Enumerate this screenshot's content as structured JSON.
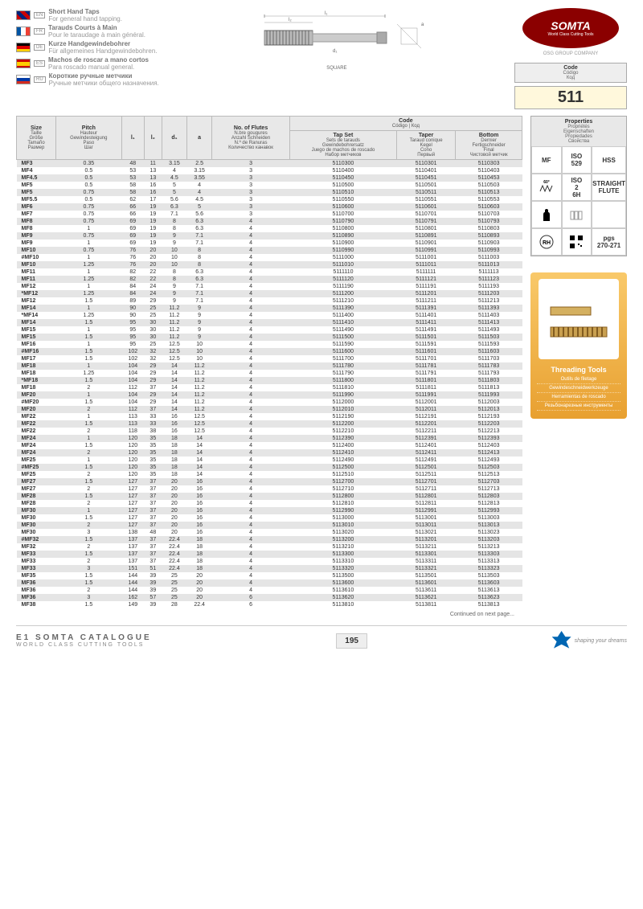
{
  "langs": [
    {
      "code": "EN",
      "title": "Short Hand Taps",
      "sub": "For general hand tapping."
    },
    {
      "code": "FR",
      "title": "Tarauds Courts à Main",
      "sub": "Pour le taraudage à main général."
    },
    {
      "code": "DE",
      "title": "Kurze Handgewindebohrer",
      "sub": "Für allgemeines Handgewindebohren."
    },
    {
      "code": "ES",
      "title": "Machos de roscar a mano cortos",
      "sub": "Para roscado manual general."
    },
    {
      "code": "RU",
      "title": "Короткие ручные метчики",
      "sub": "Ручные метчики общего назначения."
    }
  ],
  "brand": {
    "name": "SOMTA",
    "tag": "World Class Cutting Tools",
    "osg": "OSG GROUP COMPANY"
  },
  "diagramLabel": "SQUARE",
  "codeBox": {
    "title": "Code",
    "subs": [
      "Código",
      "Код"
    ],
    "value": "511"
  },
  "headers": {
    "size": {
      "t": "Size",
      "s": [
        "Taille",
        "Größe",
        "Tamaño",
        "Размер"
      ]
    },
    "pitch": {
      "t": "Pitch",
      "s": [
        "Hauteur",
        "Gewindesteigung",
        "Paso",
        "Шаг"
      ]
    },
    "l1": "l₁",
    "l2": "l₂",
    "d1": "d₁",
    "a": "a",
    "flutes": {
      "t": "No. of Flutes",
      "s": [
        "N.bre gougures",
        "Anzahl Schneiden",
        "N.º de Ranuras",
        "Количество канавок"
      ]
    },
    "code": {
      "t": "Code",
      "s": "Código | Код"
    },
    "tapset": {
      "t": "Tap Set",
      "s": [
        "Sets de tarauds",
        "Gewindebohrersatz",
        "Juego de machos de roscado",
        "Набор метчиков"
      ]
    },
    "taper": {
      "t": "Taper",
      "s": [
        "Taraud conique",
        "Kegel",
        "Cono",
        "Первый"
      ]
    },
    "bottom": {
      "t": "Bottom",
      "s": [
        "Dernier",
        "Fertigschneider",
        "Final",
        "Чистовой метчик"
      ]
    }
  },
  "rows": [
    [
      "MF3",
      "0.35",
      "48",
      "11",
      "3.15",
      "2.5",
      "3",
      "5110300",
      "5110301",
      "5110303"
    ],
    [
      "MF4",
      "0.5",
      "53",
      "13",
      "4",
      "3.15",
      "3",
      "5110400",
      "5110401",
      "5110403"
    ],
    [
      "MF4.5",
      "0.5",
      "53",
      "13",
      "4.5",
      "3.55",
      "3",
      "5110450",
      "5110451",
      "5110453"
    ],
    [
      "MF5",
      "0.5",
      "58",
      "16",
      "5",
      "4",
      "3",
      "5110500",
      "5110501",
      "5110503"
    ],
    [
      "MF5",
      "0.75",
      "58",
      "16",
      "5",
      "4",
      "3",
      "5110510",
      "5110511",
      "5110513"
    ],
    [
      "MF5.5",
      "0.5",
      "62",
      "17",
      "5.6",
      "4.5",
      "3",
      "5110550",
      "5110551",
      "5110553"
    ],
    [
      "MF6",
      "0.75",
      "66",
      "19",
      "6.3",
      "5",
      "3",
      "5110600",
      "5110601",
      "5110603"
    ],
    [
      "MF7",
      "0.75",
      "66",
      "19",
      "7.1",
      "5.6",
      "3",
      "5110700",
      "5110701",
      "5110703"
    ],
    [
      "MF8",
      "0.75",
      "69",
      "19",
      "8",
      "6.3",
      "4",
      "5110790",
      "5110791",
      "5110793"
    ],
    [
      "MF8",
      "1",
      "69",
      "19",
      "8",
      "6.3",
      "4",
      "5110800",
      "5110801",
      "5110803"
    ],
    [
      "MF9",
      "0.75",
      "69",
      "19",
      "9",
      "7.1",
      "4",
      "5110890",
      "5110891",
      "5110893"
    ],
    [
      "MF9",
      "1",
      "69",
      "19",
      "9",
      "7.1",
      "4",
      "5110900",
      "5110901",
      "5110903"
    ],
    [
      "MF10",
      "0.75",
      "76",
      "20",
      "10",
      "8",
      "4",
      "5110990",
      "5110991",
      "5110993"
    ],
    [
      "#MF10",
      "1",
      "76",
      "20",
      "10",
      "8",
      "4",
      "5111000",
      "5111001",
      "5111003"
    ],
    [
      "MF10",
      "1.25",
      "76",
      "20",
      "10",
      "8",
      "4",
      "5111010",
      "5111011",
      "5111013"
    ],
    [
      "MF11",
      "1",
      "82",
      "22",
      "8",
      "6.3",
      "4",
      "5111110",
      "5111111",
      "5111113"
    ],
    [
      "MF11",
      "1.25",
      "82",
      "22",
      "8",
      "6.3",
      "4",
      "5111120",
      "5111121",
      "5111123"
    ],
    [
      "MF12",
      "1",
      "84",
      "24",
      "9",
      "7.1",
      "4",
      "5111190",
      "5111191",
      "5111193"
    ],
    [
      "*MF12",
      "1.25",
      "84",
      "24",
      "9",
      "7.1",
      "4",
      "5111200",
      "5111201",
      "5111203"
    ],
    [
      "MF12",
      "1.5",
      "89",
      "29",
      "9",
      "7.1",
      "4",
      "5111210",
      "5111211",
      "5111213"
    ],
    [
      "MF14",
      "1",
      "90",
      "25",
      "11.2",
      "9",
      "4",
      "5111390",
      "5111391",
      "5111393"
    ],
    [
      "*MF14",
      "1.25",
      "90",
      "25",
      "11.2",
      "9",
      "4",
      "5111400",
      "5111401",
      "5111403"
    ],
    [
      "MF14",
      "1.5",
      "95",
      "30",
      "11.2",
      "9",
      "4",
      "5111410",
      "5111411",
      "5111413"
    ],
    [
      "MF15",
      "1",
      "95",
      "30",
      "11.2",
      "9",
      "4",
      "5111490",
      "5111491",
      "5111493"
    ],
    [
      "MF15",
      "1.5",
      "95",
      "30",
      "11.2",
      "9",
      "4",
      "5111500",
      "5111501",
      "5111503"
    ],
    [
      "MF16",
      "1",
      "95",
      "25",
      "12.5",
      "10",
      "4",
      "5111590",
      "5111591",
      "5111593"
    ],
    [
      "#MF16",
      "1.5",
      "102",
      "32",
      "12.5",
      "10",
      "4",
      "5111600",
      "5111601",
      "5111603"
    ],
    [
      "MF17",
      "1.5",
      "102",
      "32",
      "12.5",
      "10",
      "4",
      "5111700",
      "5111701",
      "5111703"
    ],
    [
      "MF18",
      "1",
      "104",
      "29",
      "14",
      "11.2",
      "4",
      "5111780",
      "5111781",
      "5111783"
    ],
    [
      "MF18",
      "1.25",
      "104",
      "29",
      "14",
      "11.2",
      "4",
      "5111790",
      "5111791",
      "5111793"
    ],
    [
      "*MF18",
      "1.5",
      "104",
      "29",
      "14",
      "11.2",
      "4",
      "5111800",
      "5111801",
      "5111803"
    ],
    [
      "MF18",
      "2",
      "112",
      "37",
      "14",
      "11.2",
      "4",
      "5111810",
      "5111811",
      "5111813"
    ],
    [
      "MF20",
      "1",
      "104",
      "29",
      "14",
      "11.2",
      "4",
      "5111990",
      "5111991",
      "5111993"
    ],
    [
      "#MF20",
      "1.5",
      "104",
      "29",
      "14",
      "11.2",
      "4",
      "5112000",
      "5112001",
      "5112003"
    ],
    [
      "MF20",
      "2",
      "112",
      "37",
      "14",
      "11.2",
      "4",
      "5112010",
      "5112011",
      "5112013"
    ],
    [
      "MF22",
      "1",
      "113",
      "33",
      "16",
      "12.5",
      "4",
      "5112190",
      "5112191",
      "5112193"
    ],
    [
      "MF22",
      "1.5",
      "113",
      "33",
      "16",
      "12.5",
      "4",
      "5112200",
      "5112201",
      "5112203"
    ],
    [
      "MF22",
      "2",
      "118",
      "38",
      "16",
      "12.5",
      "4",
      "5112210",
      "5112211",
      "5112213"
    ],
    [
      "MF24",
      "1",
      "120",
      "35",
      "18",
      "14",
      "4",
      "5112390",
      "5112391",
      "5112393"
    ],
    [
      "MF24",
      "1.5",
      "120",
      "35",
      "18",
      "14",
      "4",
      "5112400",
      "5112401",
      "5112403"
    ],
    [
      "MF24",
      "2",
      "120",
      "35",
      "18",
      "14",
      "4",
      "5112410",
      "5112411",
      "5112413"
    ],
    [
      "MF25",
      "1",
      "120",
      "35",
      "18",
      "14",
      "4",
      "5112490",
      "5112491",
      "5112493"
    ],
    [
      "#MF25",
      "1.5",
      "120",
      "35",
      "18",
      "14",
      "4",
      "5112500",
      "5112501",
      "5112503"
    ],
    [
      "MF25",
      "2",
      "120",
      "35",
      "18",
      "14",
      "4",
      "5112510",
      "5112511",
      "5112513"
    ],
    [
      "MF27",
      "1.5",
      "127",
      "37",
      "20",
      "16",
      "4",
      "5112700",
      "5112701",
      "5112703"
    ],
    [
      "MF27",
      "2",
      "127",
      "37",
      "20",
      "16",
      "4",
      "5112710",
      "5112711",
      "5112713"
    ],
    [
      "MF28",
      "1.5",
      "127",
      "37",
      "20",
      "16",
      "4",
      "5112800",
      "5112801",
      "5112803"
    ],
    [
      "MF28",
      "2",
      "127",
      "37",
      "20",
      "16",
      "4",
      "5112810",
      "5112811",
      "5112813"
    ],
    [
      "MF30",
      "1",
      "127",
      "37",
      "20",
      "16",
      "4",
      "5112990",
      "5112991",
      "5112993"
    ],
    [
      "MF30",
      "1.5",
      "127",
      "37",
      "20",
      "16",
      "4",
      "5113000",
      "5113001",
      "5113003"
    ],
    [
      "MF30",
      "2",
      "127",
      "37",
      "20",
      "16",
      "4",
      "5113010",
      "5113011",
      "5113013"
    ],
    [
      "MF30",
      "3",
      "138",
      "48",
      "20",
      "16",
      "4",
      "5113020",
      "5113021",
      "5113023"
    ],
    [
      "#MF32",
      "1.5",
      "137",
      "37",
      "22.4",
      "18",
      "4",
      "5113200",
      "5113201",
      "5113203"
    ],
    [
      "MF32",
      "2",
      "137",
      "37",
      "22.4",
      "18",
      "4",
      "5113210",
      "5113211",
      "5113213"
    ],
    [
      "MF33",
      "1.5",
      "137",
      "37",
      "22.4",
      "18",
      "4",
      "5113300",
      "5113301",
      "5113303"
    ],
    [
      "MF33",
      "2",
      "137",
      "37",
      "22.4",
      "18",
      "4",
      "5113310",
      "5113311",
      "5113313"
    ],
    [
      "MF33",
      "3",
      "151",
      "51",
      "22.4",
      "18",
      "4",
      "5113320",
      "5113321",
      "5113323"
    ],
    [
      "MF35",
      "1.5",
      "144",
      "39",
      "25",
      "20",
      "4",
      "5113500",
      "5113501",
      "5113503"
    ],
    [
      "MF36",
      "1.5",
      "144",
      "39",
      "25",
      "20",
      "4",
      "5113600",
      "5113601",
      "5113603"
    ],
    [
      "MF36",
      "2",
      "144",
      "39",
      "25",
      "20",
      "4",
      "5113610",
      "5113611",
      "5113613"
    ],
    [
      "MF36",
      "3",
      "162",
      "57",
      "25",
      "20",
      "6",
      "5113620",
      "5113621",
      "5113623"
    ],
    [
      "MF38",
      "1.5",
      "149",
      "39",
      "28",
      "22.4",
      "6",
      "5113810",
      "5113811",
      "5113813"
    ]
  ],
  "continued": "Continued on next page...",
  "props": {
    "title": "Properties",
    "subs": [
      "Propriétés",
      "Eigenschaften",
      "Propiedades",
      "Свойства"
    ],
    "cells": [
      "MF",
      "ISO 529",
      "HSS",
      "60°",
      "ISO 2 6H",
      "STRAIGHT FLUTE",
      "hand",
      "flute-icon",
      "",
      "RH",
      "qr",
      "pgs 270-271"
    ]
  },
  "promo": {
    "title": "Threading Tools",
    "subs": [
      "Outils de filetage",
      "Gewindeschneidwerkzeuge",
      "Herramientas de roscado",
      "Резьбонарезные инструменты"
    ]
  },
  "footer": {
    "cat": "E1 SOMTA CATALOGUE",
    "sub": "WORLD CLASS CUTTING TOOLS",
    "page": "195",
    "tag": "shaping your dreams"
  }
}
